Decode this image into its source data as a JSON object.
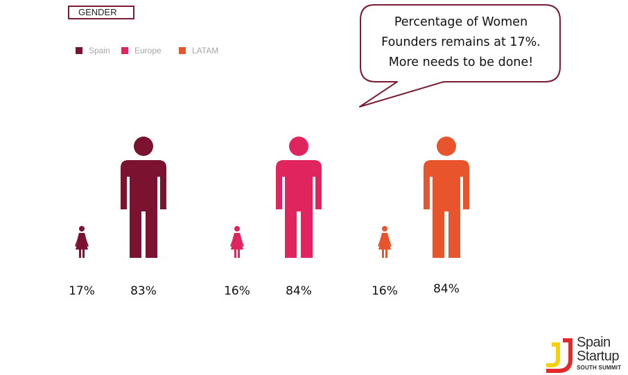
{
  "header": {
    "tag_label": "GENDER"
  },
  "callout": {
    "lines": [
      "Percentage of Women",
      "Founders remains at 17%.",
      "More needs to be done!"
    ]
  },
  "chart_data": {
    "type": "pictograph",
    "legend_position": "top-left",
    "series": [
      {
        "name": "Spain",
        "color": "#7a1230",
        "female": 17,
        "male": 83,
        "female_label": "17%",
        "male_label": "83%"
      },
      {
        "name": "Europe",
        "color": "#e0245e",
        "female": 16,
        "male": 84,
        "female_label": "16%",
        "male_label": "84%"
      },
      {
        "name": "LATAM",
        "color": "#e8542c",
        "female": 16,
        "male": 84,
        "female_label": "16%",
        "male_label": "84%"
      }
    ]
  },
  "logo": {
    "line1": "Spain",
    "line2": "Startup",
    "line3": "SOUTH SUMMIT",
    "colors": [
      "#f5d10c",
      "#e22a2a"
    ]
  }
}
